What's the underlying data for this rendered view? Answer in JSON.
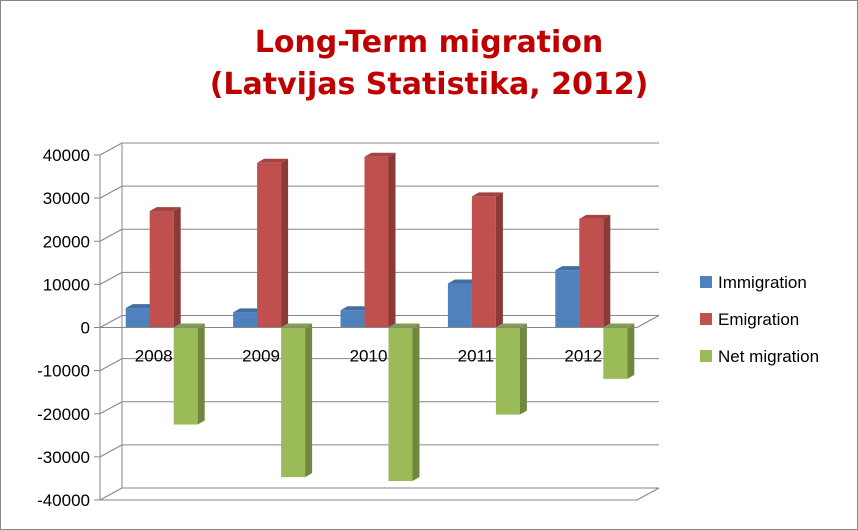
{
  "chart_data": {
    "type": "bar",
    "title": "Long-Term migration",
    "subtitle": "(Latvijas Statistika, 2012)",
    "categories": [
      "2008",
      "2009",
      "2010",
      "2011",
      "2012"
    ],
    "series": [
      {
        "name": "Immigration",
        "values": [
          4500,
          3500,
          4000,
          10200,
          13300
        ],
        "color": "#4f81bd"
      },
      {
        "name": "Emigration",
        "values": [
          27000,
          38200,
          39600,
          30400,
          25200
        ],
        "color": "#c0504d"
      },
      {
        "name": "Net migration",
        "values": [
          -22500,
          -34700,
          -35600,
          -20200,
          -11900
        ],
        "color": "#9bbb59"
      }
    ],
    "ylim": [
      -40000,
      40000
    ],
    "yticks": [
      "40000",
      "30000",
      "20000",
      "10000",
      "0",
      "-10000",
      "-20000",
      "-30000",
      "-40000"
    ],
    "grid": true,
    "legend": "right",
    "style": "3d-clustered-column"
  }
}
